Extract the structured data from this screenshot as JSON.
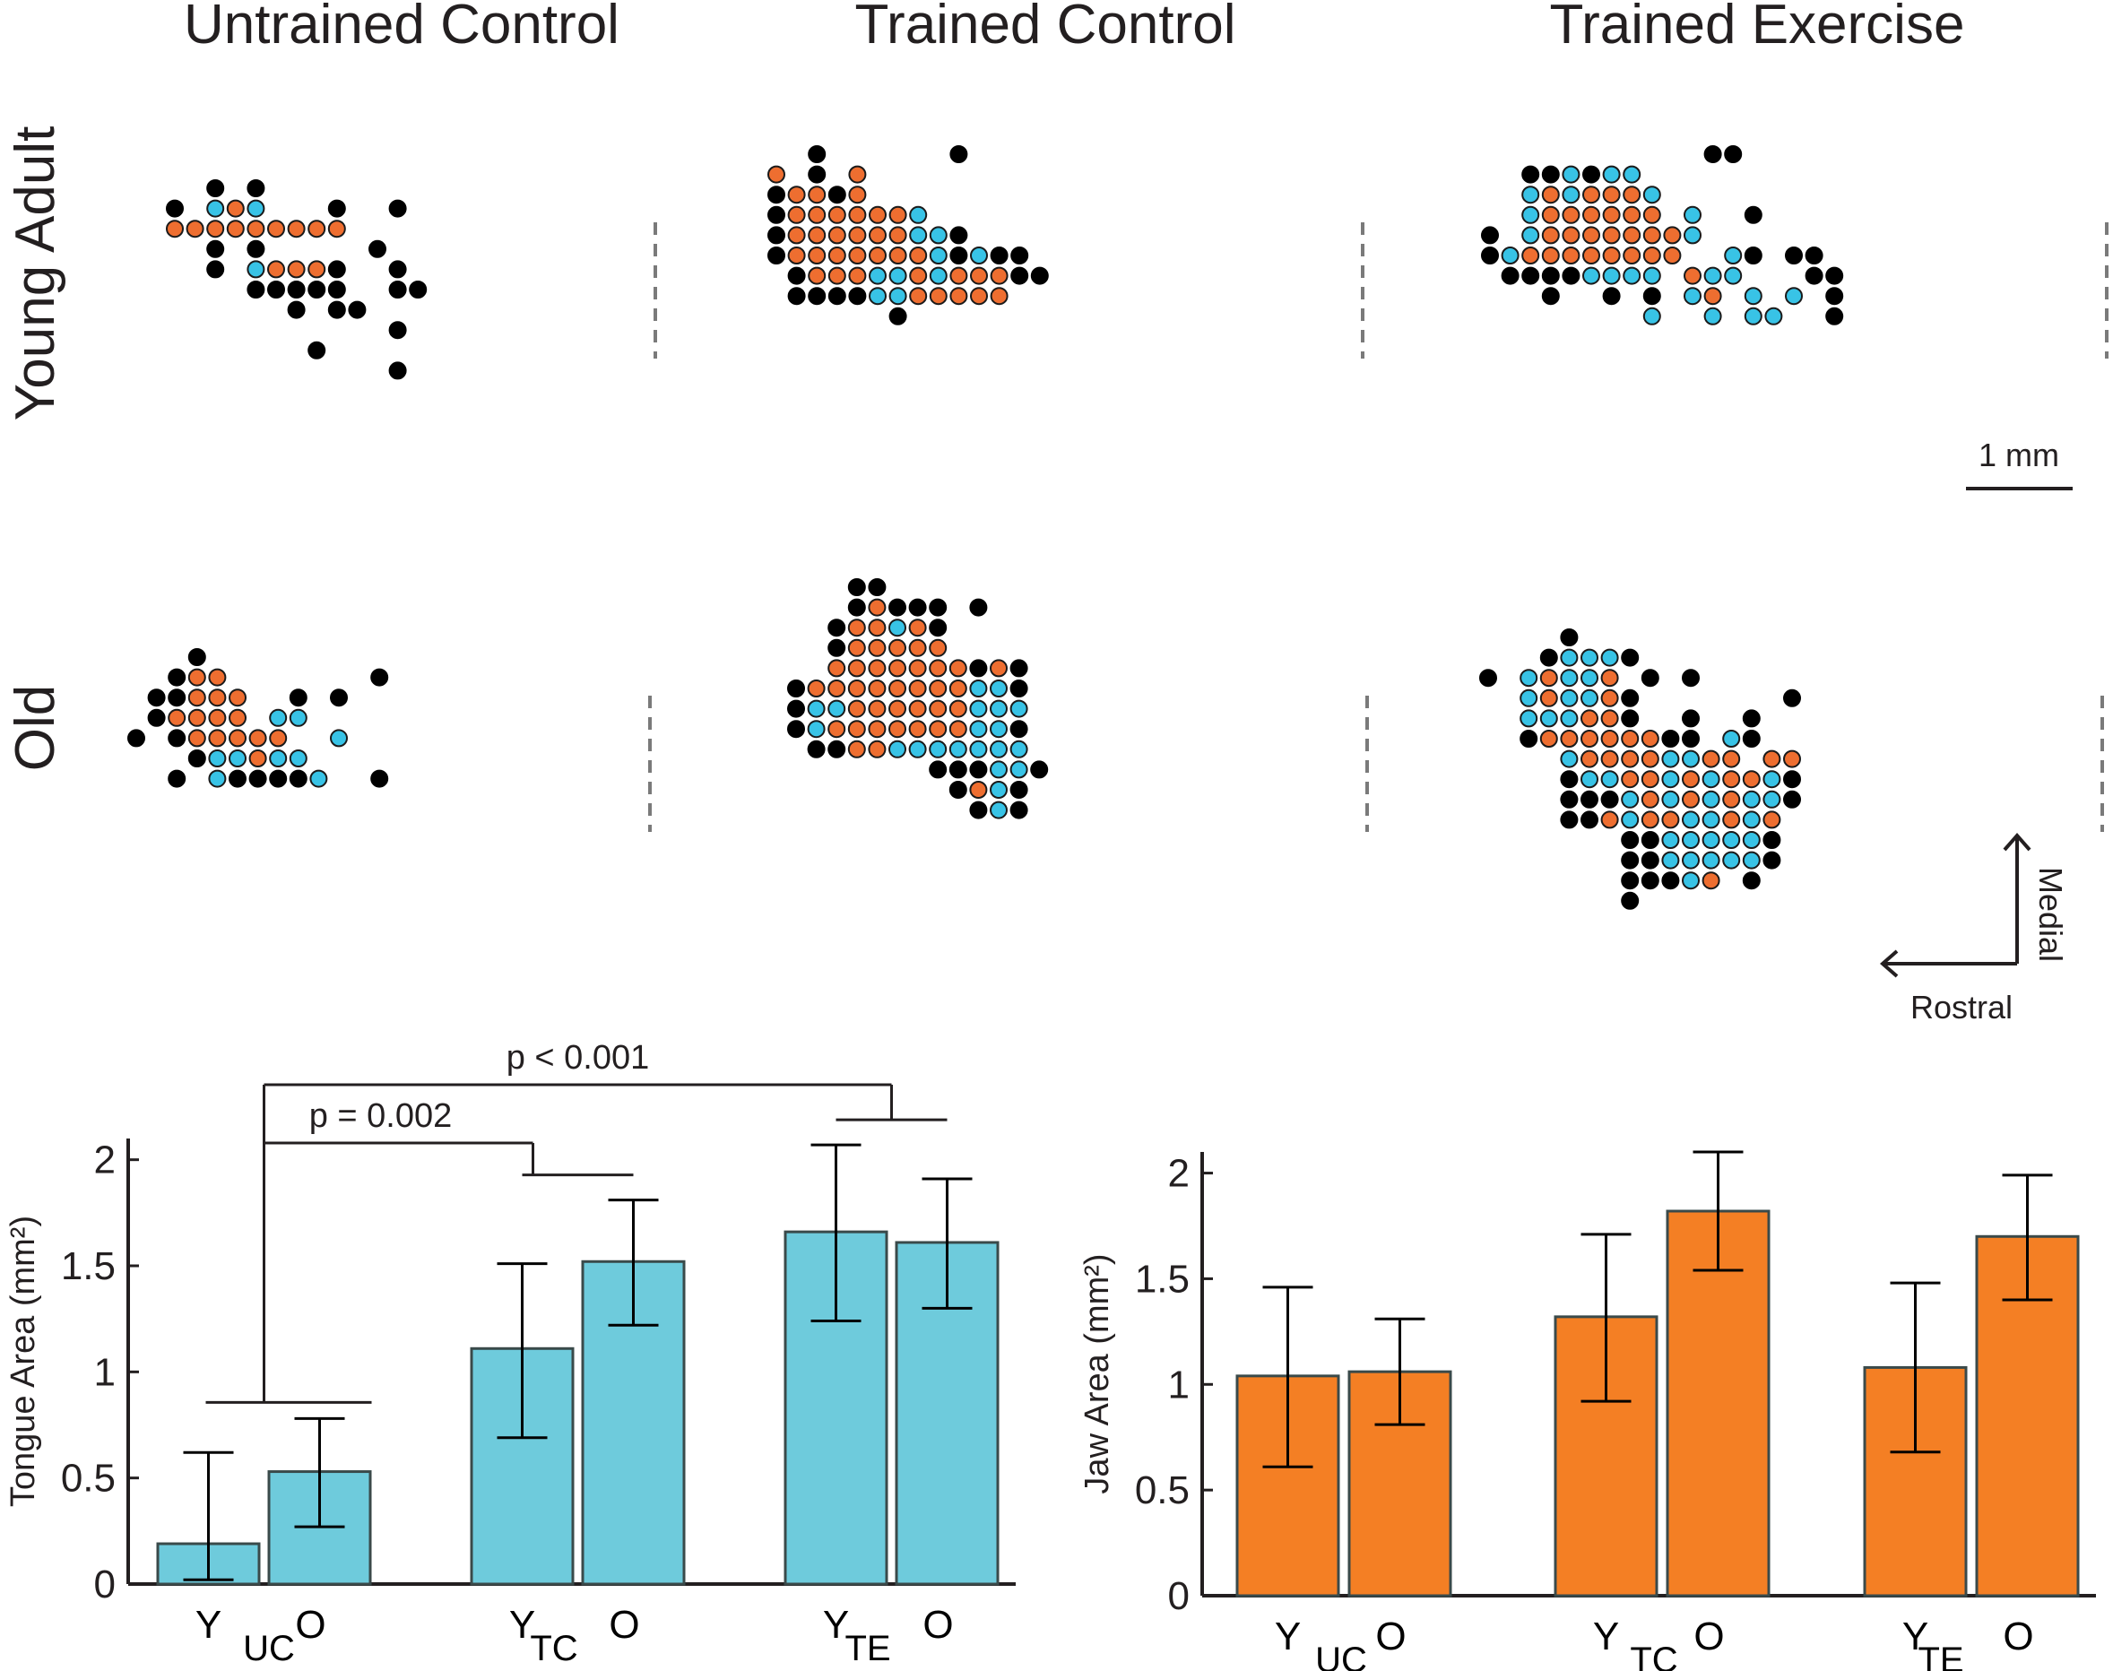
{
  "columns": [
    "Untrained Control",
    "Trained Control",
    "Trained Exercise"
  ],
  "rows": [
    "Young Adult",
    "Old"
  ],
  "scale_bar": {
    "label": "1 mm"
  },
  "orientation": {
    "vertical": "Medial",
    "horizontal": "Rostral"
  },
  "colors": {
    "tongue": "#6ecbdc",
    "jaw": "#f47f24",
    "map_jaw": "#ee6e30",
    "map_tongue": "#38c3e6",
    "none": "#000000",
    "ink": "#231f20"
  },
  "maps": [
    {
      "row": "Young Adult",
      "column": "Untrained Control",
      "sites": [
        "..K.K.........",
        "K.TJT...K..K..",
        "JJJJJJJJJ.....",
        "..K.K.....K...",
        "..K.TJJJK..K..",
        "....KKKKK..KK.",
        "......K.KK....",
        "...........K..",
        ".......K......",
        "...........K.."
      ]
    },
    {
      "row": "Young Adult",
      "column": "Trained Control",
      "sites": [
        "..K......K.....",
        "J.K.J..........",
        "KJJKJ..........",
        "KJJJJJJT.......",
        "KJJJJJJTTK.....",
        "KJJJJJJJTKTKK..",
        ".KJJJTTJTJJJKK.",
        ".KKKKTTJJJJJ...",
        "......K........"
      ]
    },
    {
      "row": "Young Adult",
      "column": "Trained Exercise",
      "sites": [
        "...........KK.......",
        "..KKTKTT............",
        "..TJTJJJT...........",
        "..TJJJJJJ.T..K......",
        "K.TJJJJJJJT.........",
        "KTJJJJJJJJ..TK.KK...",
        ".KKKKTTTT.JTT...KK..",
        "...K..K.K.TJ.T.T.K..",
        "........T..T.TT..K.."
      ]
    },
    {
      "row": "Old",
      "column": "Untrained Control",
      "sites": [
        "...K.........",
        "..KJJ.......K",
        ".KKJJJ..K.K..",
        ".KJJJJ.TT....",
        "K.KJJJJJ..T..",
        "...KTTJTT....",
        "..K.TKKKKT..K"
      ]
    },
    {
      "row": "Old",
      "column": "Trained Control",
      "sites": [
        "...KK.......",
        "...KJKKK.K..",
        "..KJJTJK....",
        "..KJJJJJ....",
        "..JJJJJJJKJK",
        "KJJJJJJJJTTK",
        "KTTJJJJJJTTT",
        "KTJJJJJJJTTK",
        ".KKJJTTTTTTT",
        ".......KKKTTK",
        "........KJTK",
        ".........KTK"
      ]
    },
    {
      "row": "Old",
      "column": "Trained Exercise",
      "sites": [
        "....K...........",
        "...KTTTK........",
        "K.TJTTJ.K.K.....",
        "..TJTTJK.......K",
        "..TTTJJK..K..K..",
        "..KJJJJJJKK.TK..",
        "....TJJJJTTJJ.JJ",
        "....KTTJJTJTJJTK",
        "....KKKTJTJTJTTK",
        "....KKJTJJTTJTJ.",
        ".......KKTTTTTK.",
        ".......KKTTTTTK.",
        ".......KKKTJ.K..",
        ".......K........"
      ]
    }
  ],
  "chart_data": [
    {
      "type": "bar",
      "title": "",
      "ylabel": "Tongue Area  (mm²)",
      "xlabel": "",
      "ylim": [
        0,
        2.1
      ],
      "yticks": [
        "0",
        "0.5",
        "1",
        "1.5",
        "2"
      ],
      "groups": [
        "UC",
        "TC",
        "TE"
      ],
      "categories": [
        "Y",
        "O",
        "Y",
        "O",
        "Y",
        "O"
      ],
      "values": [
        0.19,
        0.53,
        1.11,
        1.52,
        1.66,
        1.61
      ],
      "error_low": [
        0.02,
        0.27,
        0.69,
        1.22,
        1.24,
        1.3
      ],
      "error_high": [
        0.62,
        0.78,
        1.51,
        1.81,
        2.07,
        1.91
      ],
      "color": "#6ecbdc",
      "annotations": [
        {
          "text": "p = 0.002",
          "from": "UC",
          "to": "TC"
        },
        {
          "text": "p < 0.001",
          "from": "UC",
          "to": "TE"
        }
      ]
    },
    {
      "type": "bar",
      "title": "",
      "ylabel": "Jaw Area  (mm²)",
      "xlabel": "",
      "ylim": [
        0,
        2.1
      ],
      "yticks": [
        "0",
        "0.5",
        "1",
        "1.5",
        "2"
      ],
      "groups": [
        "UC",
        "TC",
        "TE"
      ],
      "categories": [
        "Y",
        "O",
        "Y",
        "O",
        "Y",
        "O"
      ],
      "values": [
        1.04,
        1.06,
        1.32,
        1.82,
        1.08,
        1.7
      ],
      "error_low": [
        0.61,
        0.81,
        0.92,
        1.54,
        0.68,
        1.4
      ],
      "error_high": [
        1.46,
        1.31,
        1.71,
        2.1,
        1.48,
        1.99
      ],
      "color": "#f47f24",
      "annotations": []
    }
  ]
}
